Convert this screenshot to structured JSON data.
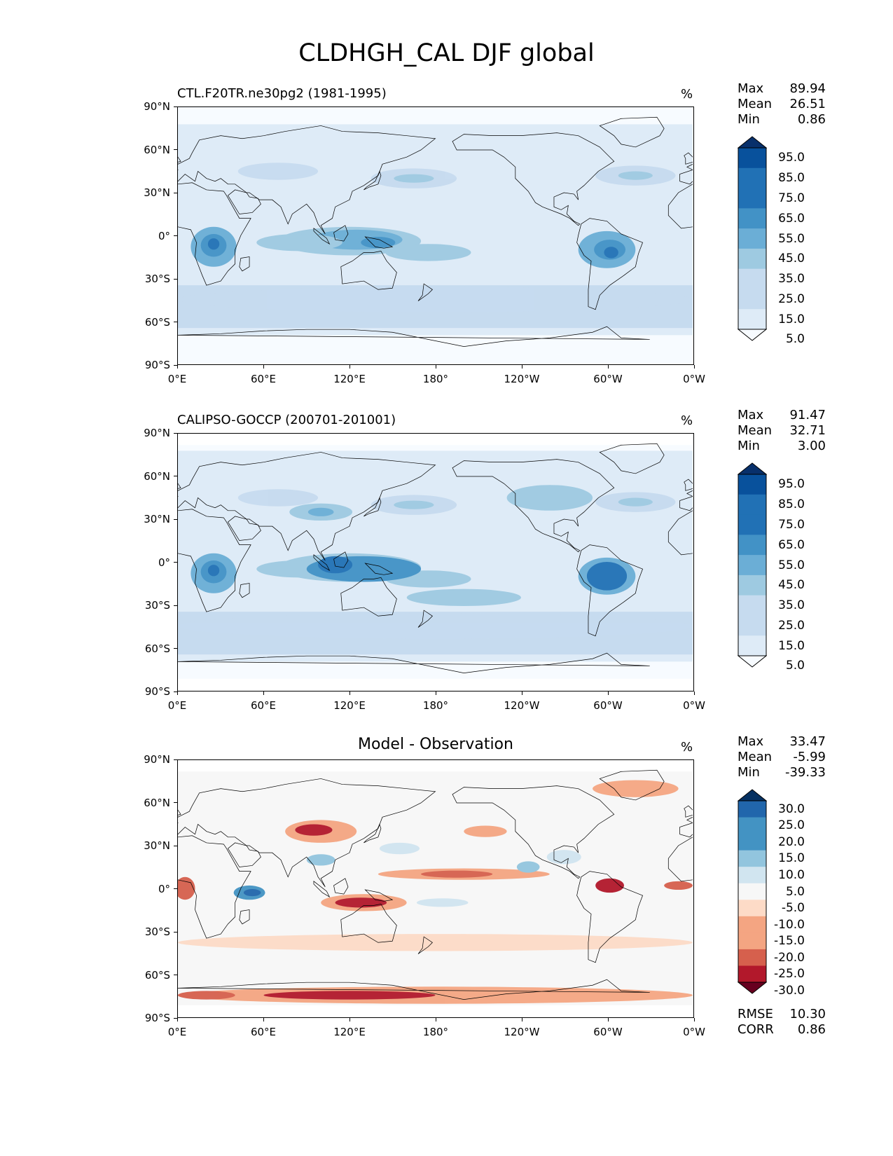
{
  "figure": {
    "title": "CLDHGH_CAL DJF global"
  },
  "chart_data": [
    {
      "type": "heatmap",
      "title": "CTL.F20TR.ne30pg2 (1981-1995)",
      "units": "%",
      "stats": [
        {
          "label": "Max",
          "value": "89.94"
        },
        {
          "label": "Mean",
          "value": "26.51"
        },
        {
          "label": "Min",
          "value": "0.86"
        }
      ],
      "xticks": [
        "0°E",
        "60°E",
        "120°E",
        "180°",
        "120°W",
        "60°W",
        "0°W"
      ],
      "yticks": [
        "90°N",
        "60°N",
        "30°N",
        "0°",
        "30°S",
        "60°S",
        "90°S"
      ],
      "colorbar_labels": [
        "95.0",
        "85.0",
        "75.0",
        "65.0",
        "55.0",
        "45.0",
        "35.0",
        "25.0",
        "15.0",
        "5.0"
      ],
      "colorscale": "Blues",
      "xlim": [
        0,
        360
      ],
      "ylim": [
        -90,
        90
      ]
    },
    {
      "type": "heatmap",
      "title": "CALIPSO-GOCCP (200701-201001)",
      "units": "%",
      "stats": [
        {
          "label": "Max",
          "value": "91.47"
        },
        {
          "label": "Mean",
          "value": "32.71"
        },
        {
          "label": "Min",
          "value": "3.00"
        }
      ],
      "xticks": [
        "0°E",
        "60°E",
        "120°E",
        "180°",
        "120°W",
        "60°W",
        "0°W"
      ],
      "yticks": [
        "90°N",
        "60°N",
        "30°N",
        "0°",
        "30°S",
        "60°S",
        "90°S"
      ],
      "colorbar_labels": [
        "95.0",
        "85.0",
        "75.0",
        "65.0",
        "55.0",
        "45.0",
        "35.0",
        "25.0",
        "15.0",
        "5.0"
      ],
      "colorscale": "Blues",
      "xlim": [
        0,
        360
      ],
      "ylim": [
        -90,
        90
      ]
    },
    {
      "type": "heatmap",
      "title": "Model - Observation",
      "units": "%",
      "stats": [
        {
          "label": "Max",
          "value": "33.47"
        },
        {
          "label": "Mean",
          "value": "-5.99"
        },
        {
          "label": "Min",
          "value": "-39.33"
        }
      ],
      "extra_stats": [
        {
          "label": "RMSE",
          "value": "10.30"
        },
        {
          "label": "CORR",
          "value": "0.86"
        }
      ],
      "xticks": [
        "0°E",
        "60°E",
        "120°E",
        "180°",
        "120°W",
        "60°W",
        "0°W"
      ],
      "yticks": [
        "90°N",
        "60°N",
        "30°N",
        "0°",
        "30°S",
        "60°S",
        "90°S"
      ],
      "colorbar_labels": [
        "30.0",
        "25.0",
        "20.0",
        "15.0",
        "10.0",
        "5.0",
        "-5.0",
        "-10.0",
        "-15.0",
        "-20.0",
        "-25.0",
        "-30.0"
      ],
      "colorscale": "RdBu",
      "xlim": [
        0,
        360
      ],
      "ylim": [
        -90,
        90
      ]
    }
  ],
  "colors": {
    "blues": [
      "#f7fbff",
      "#deebf7",
      "#c6dbef",
      "#9ecae1",
      "#6baed6",
      "#4292c6",
      "#2171b5",
      "#08519c",
      "#08306b"
    ],
    "diff": [
      "#67001f",
      "#b2182b",
      "#d6604d",
      "#f4a582",
      "#fddbc7",
      "#f7f7f7",
      "#d1e5f0",
      "#92c5de",
      "#4393c3",
      "#2166ac",
      "#053061"
    ]
  }
}
